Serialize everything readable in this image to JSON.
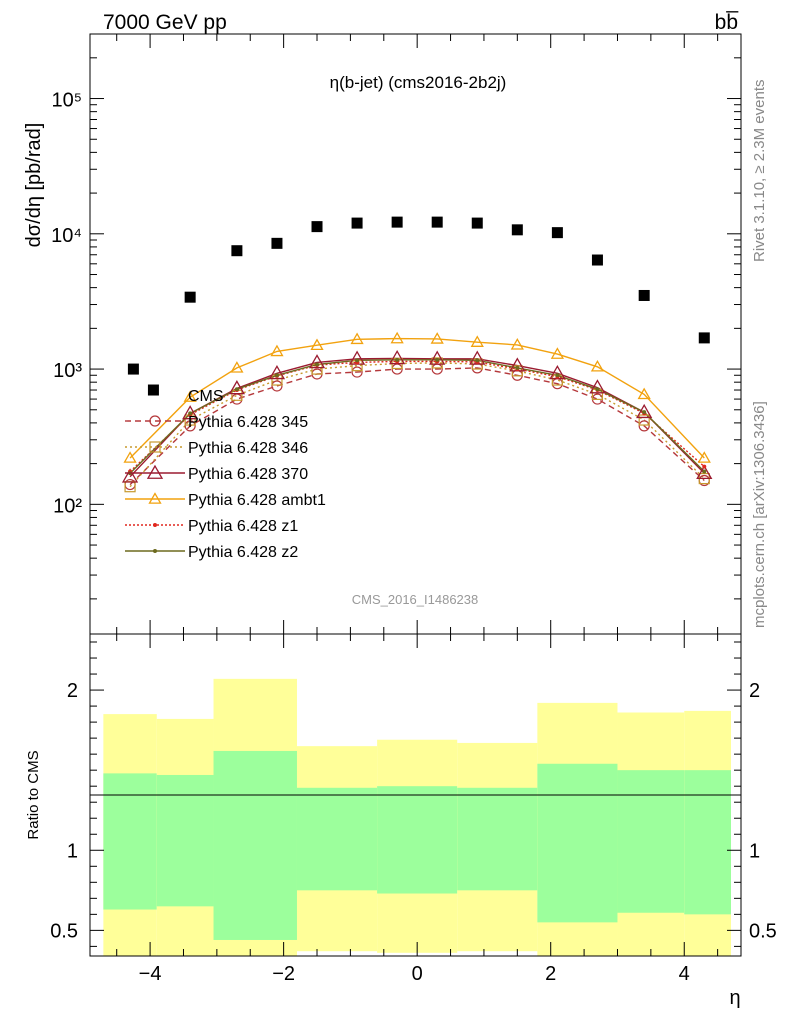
{
  "header": {
    "left": "7000 GeV pp",
    "right": "bb̅"
  },
  "side_labels": {
    "rivet": "Rivet 3.1.10, ≥ 2.3M events",
    "mcplots": "mcplots.cern.ch [arXiv:1306.3436]"
  },
  "chart_data": [
    {
      "type": "scatter",
      "title": "η(b-jet) (cms2016-2b2j)",
      "watermark": "CMS_2016_I1486238",
      "ylabel": "dσ/dη [pb/rad]",
      "yscale": "log",
      "ylim": [
        11,
        300000
      ],
      "xlim": [
        -4.9,
        4.85
      ],
      "yticks": [
        {
          "value": 100,
          "label": "10²"
        },
        {
          "value": 1000,
          "label": "10³"
        },
        {
          "value": 10000,
          "label": "10⁴"
        },
        {
          "value": 100000,
          "label": "10⁵"
        }
      ],
      "legend_position": "left-middle",
      "data_series": {
        "name": "CMS",
        "x": [
          -4.25,
          -3.95,
          -3.4,
          -2.7,
          -2.1,
          -1.5,
          -0.9,
          -0.3,
          0.3,
          0.9,
          1.5,
          2.1,
          2.7,
          3.4,
          4.3
        ],
        "y": [
          1000,
          700,
          3400,
          7500,
          8500,
          11300,
          12000,
          12200,
          12200,
          12000,
          10700,
          10200,
          6400,
          3500,
          1700
        ]
      },
      "mc_x": [
        -4.3,
        -3.4,
        -2.7,
        -2.1,
        -1.5,
        -0.9,
        -0.3,
        0.3,
        0.9,
        1.5,
        2.1,
        2.7,
        3.4,
        4.3
      ],
      "mc_series": [
        {
          "name": "Pythia 6.428 345",
          "color": "#b5383b",
          "dash": "6,4",
          "marker": "circle",
          "y": [
            140,
            380,
            600,
            750,
            920,
            950,
            1000,
            1000,
            1020,
            900,
            780,
            600,
            380,
            150
          ]
        },
        {
          "name": "Pythia 6.428 346",
          "color": "#c79a2e",
          "dash": "2,3",
          "marker": "square",
          "y": [
            135,
            420,
            640,
            830,
            1000,
            1060,
            1100,
            1110,
            1090,
            970,
            830,
            650,
            420,
            155
          ]
        },
        {
          "name": "Pythia 6.428 370",
          "color": "#9b1b30",
          "dash": "",
          "marker": "triangle",
          "y": [
            160,
            470,
            720,
            930,
            1120,
            1190,
            1200,
            1190,
            1190,
            1060,
            930,
            730,
            480,
            170
          ]
        },
        {
          "name": "Pythia 6.428 ambt1",
          "color": "#f2a20f",
          "dash": "",
          "marker": "triangle-open",
          "y": [
            220,
            620,
            1020,
            1350,
            1500,
            1660,
            1680,
            1670,
            1580,
            1510,
            1290,
            1040,
            650,
            220
          ]
        },
        {
          "name": "Pythia 6.428 z1",
          "color": "#e0271e",
          "dash": "2,2",
          "marker": "dot",
          "y": [
            175,
            460,
            700,
            890,
            1070,
            1120,
            1140,
            1140,
            1130,
            1000,
            880,
            700,
            470,
            190
          ]
        },
        {
          "name": "Pythia 6.428 z2",
          "color": "#6d6a1f",
          "dash": "",
          "marker": "dot",
          "y": [
            170,
            470,
            710,
            900,
            1080,
            1160,
            1170,
            1170,
            1160,
            1020,
            900,
            710,
            480,
            175
          ]
        }
      ]
    },
    {
      "type": "area",
      "ylabel": "Ratio to CMS",
      "xlabel": "η",
      "xlim": [
        -4.9,
        4.85
      ],
      "ylim": [
        0.34,
        2.35
      ],
      "xticks": [
        -4,
        -2,
        0,
        2,
        4
      ],
      "xtick_labels": [
        "−4",
        "−2",
        "0",
        "2",
        "4"
      ],
      "yticks": [
        0.5,
        1,
        2
      ],
      "ytick_labels": [
        "0.5",
        "1",
        "2"
      ],
      "reference_line": 1,
      "bins": [
        {
          "x0": -4.7,
          "x1": -3.9,
          "inner": [
            0.63,
            1.48
          ],
          "outer": [
            0.34,
            1.85
          ]
        },
        {
          "x0": -3.9,
          "x1": -3.05,
          "inner": [
            0.65,
            1.47
          ],
          "outer": [
            0.34,
            1.82
          ]
        },
        {
          "x0": -3.05,
          "x1": -1.8,
          "inner": [
            0.44,
            1.62
          ],
          "outer": [
            0.34,
            2.07
          ]
        },
        {
          "x0": -1.8,
          "x1": -0.6,
          "inner": [
            0.75,
            1.39
          ],
          "outer": [
            0.37,
            1.65
          ]
        },
        {
          "x0": -0.6,
          "x1": 0.6,
          "inner": [
            0.73,
            1.4
          ],
          "outer": [
            0.36,
            1.69
          ]
        },
        {
          "x0": 0.6,
          "x1": 1.8,
          "inner": [
            0.75,
            1.39
          ],
          "outer": [
            0.37,
            1.67
          ]
        },
        {
          "x0": 1.8,
          "x1": 3.0,
          "inner": [
            0.55,
            1.54
          ],
          "outer": [
            0.34,
            1.92
          ]
        },
        {
          "x0": 3.0,
          "x1": 4.0,
          "inner": [
            0.61,
            1.5
          ],
          "outer": [
            0.34,
            1.86
          ]
        },
        {
          "x0": 4.0,
          "x1": 4.7,
          "inner": [
            0.6,
            1.5
          ],
          "outer": [
            0.34,
            1.87
          ]
        }
      ],
      "colors": {
        "inner": "#9cff9c",
        "outer": "#ffff99"
      }
    }
  ]
}
